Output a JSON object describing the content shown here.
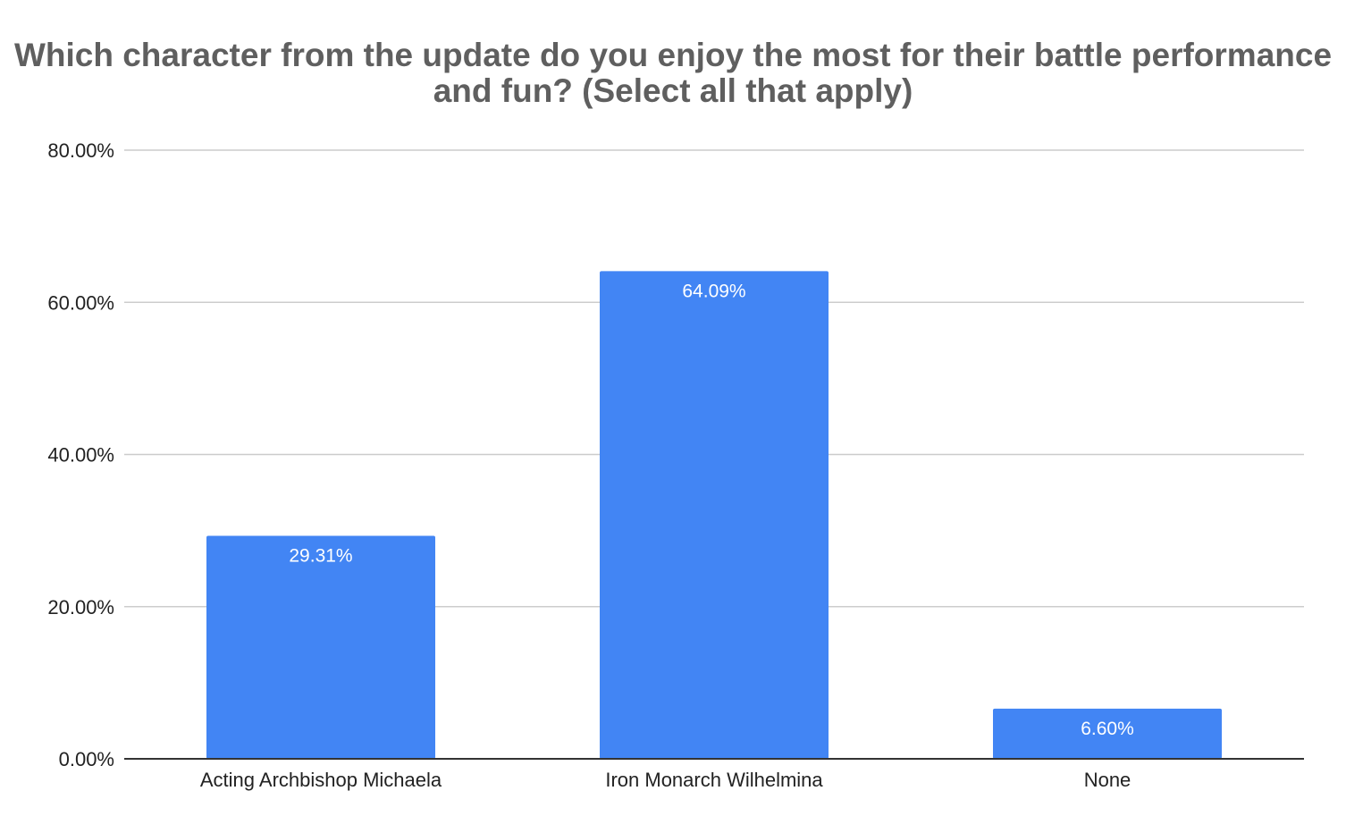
{
  "chart_data": {
    "type": "bar",
    "title": "Which character from the update do you enjoy the most for their battle performance and fun? (Select all that apply)",
    "xlabel": "",
    "ylabel": "",
    "categories": [
      "Acting Archbishop Michaela",
      "Iron Monarch Wilhelmina",
      "None"
    ],
    "values": [
      29.31,
      64.09,
      6.6
    ],
    "data_labels": [
      "29.31%",
      "64.09%",
      "6.60%"
    ],
    "ylim": [
      0,
      80
    ],
    "yticks": [
      0,
      20,
      40,
      60,
      80
    ],
    "ytick_labels": [
      "0.00%",
      "20.00%",
      "40.00%",
      "60.00%",
      "80.00%"
    ],
    "grid": true,
    "legend": "none",
    "bar_color": "#4285f4",
    "grid_color": "#cccccc",
    "axis_color": "#333333",
    "title_color": "#5f5f5f"
  }
}
